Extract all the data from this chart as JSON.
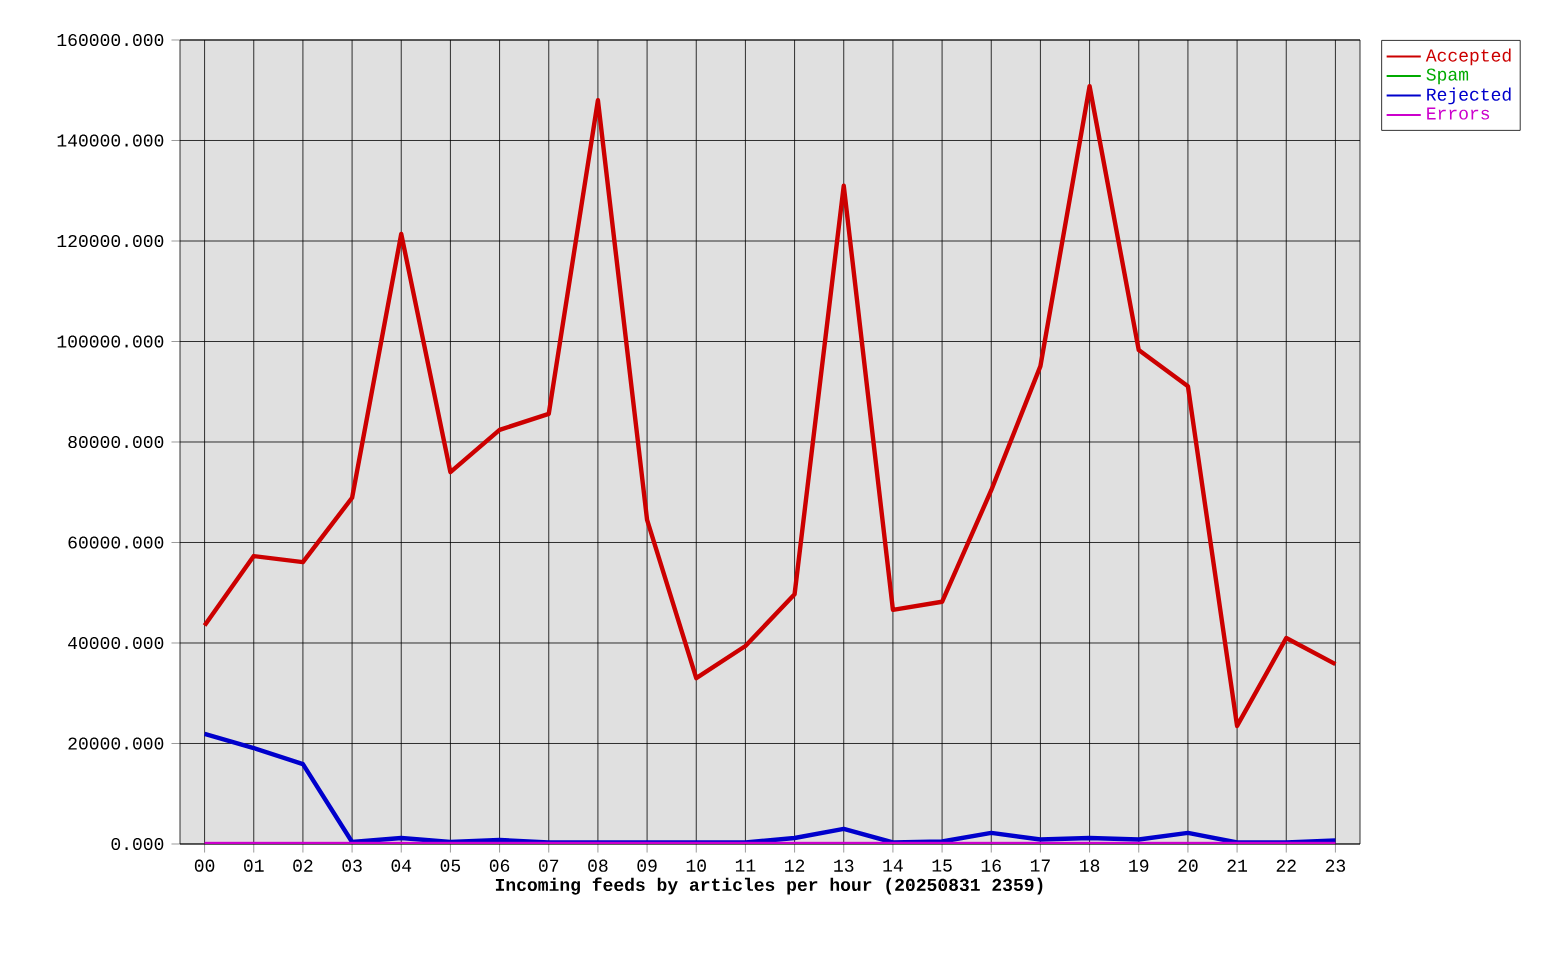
{
  "chart_data": {
    "type": "line",
    "xlabel": "Incoming feeds by articles per hour (20250831 2359)",
    "categories": [
      "00",
      "01",
      "02",
      "03",
      "04",
      "05",
      "06",
      "07",
      "08",
      "09",
      "10",
      "11",
      "12",
      "13",
      "14",
      "15",
      "16",
      "17",
      "18",
      "19",
      "20",
      "21",
      "22",
      "23"
    ],
    "series": [
      {
        "name": "Accepted",
        "color": "#cc0000",
        "values": [
          43500,
          57300,
          56100,
          68900,
          121400,
          74000,
          82400,
          85600,
          148000,
          64500,
          33000,
          39400,
          49700,
          131000,
          46600,
          48200,
          70400,
          95100,
          150800,
          98300,
          91100,
          23500,
          41000,
          35800
        ]
      },
      {
        "name": "Spam",
        "color": "#00aa00",
        "values": [
          null,
          null,
          null,
          null,
          null,
          null,
          null,
          null,
          null,
          null,
          null,
          null,
          null,
          null,
          null,
          null,
          null,
          null,
          null,
          null,
          null,
          null,
          null,
          null
        ]
      },
      {
        "name": "Rejected",
        "color": "#0000cc",
        "values": [
          21900,
          19100,
          15900,
          400,
          1200,
          400,
          800,
          300,
          300,
          300,
          300,
          300,
          1200,
          3000,
          300,
          500,
          2200,
          900,
          1200,
          900,
          2200,
          300,
          300,
          700
        ]
      },
      {
        "name": "Errors",
        "color": "#cc00cc",
        "values": [
          0,
          0,
          0,
          0,
          0,
          0,
          0,
          0,
          0,
          0,
          0,
          0,
          0,
          0,
          0,
          0,
          0,
          0,
          0,
          0,
          0,
          0,
          0,
          0
        ]
      }
    ],
    "ylim": [
      0,
      160000
    ],
    "yticks": [
      {
        "value": 0,
        "label": "0.000"
      },
      {
        "value": 20000,
        "label": "20000.000"
      },
      {
        "value": 40000,
        "label": "40000.000"
      },
      {
        "value": 60000,
        "label": "60000.000"
      },
      {
        "value": 80000,
        "label": "80000.000"
      },
      {
        "value": 100000,
        "label": "100000.000"
      },
      {
        "value": 120000,
        "label": "120000.000"
      },
      {
        "value": 140000,
        "label": "140000.000"
      },
      {
        "value": 160000,
        "label": "160000.000"
      }
    ],
    "grid": true,
    "legend": "top right",
    "marker": "none",
    "line_style": "solid"
  }
}
